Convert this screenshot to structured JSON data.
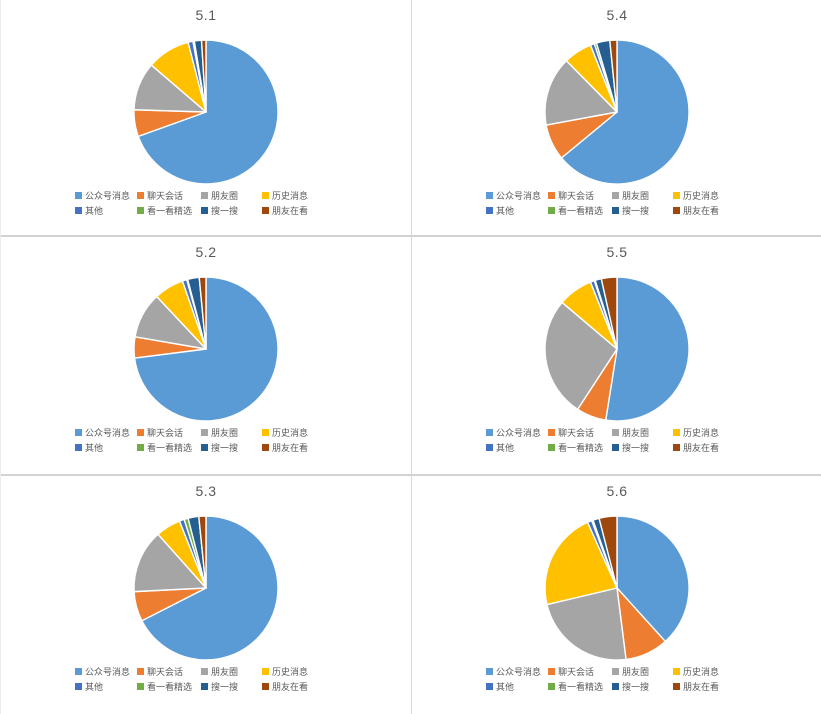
{
  "page": {
    "background": "#ffffff",
    "divider_color": "#d9d9d9"
  },
  "legend": {
    "labels": [
      "公众号消息",
      "聊天会话",
      "朋友圈",
      "历史消息",
      "其他",
      "看一看精选",
      "搜一搜",
      "朋友在看"
    ],
    "colors": [
      "#5B9BD5",
      "#ED7D31",
      "#A5A5A5",
      "#FFC000",
      "#4472C4",
      "#70AD47",
      "#255E91",
      "#9E480E"
    ],
    "position": "bottom"
  },
  "chart_data": {
    "type": "pie",
    "note": "six pie charts sharing the same categories and colors; values are percent of whole, drawn clockwise from 12 o'clock",
    "categories": [
      "公众号消息",
      "聊天会话",
      "朋友圈",
      "历史消息",
      "其他",
      "看一看精选",
      "搜一搜",
      "朋友在看"
    ],
    "colors": [
      "#5B9BD5",
      "#ED7D31",
      "#A5A5A5",
      "#FFC000",
      "#4472C4",
      "#70AD47",
      "#255E91",
      "#9E480E"
    ],
    "charts": [
      {
        "title": "5.1",
        "values": [
          69.5,
          6.0,
          10.8,
          9.7,
          1.1,
          0.3,
          1.6,
          1.0
        ]
      },
      {
        "title": "5.4",
        "values": [
          64.0,
          8.1,
          15.5,
          6.4,
          0.9,
          0.5,
          3.0,
          1.6
        ]
      },
      {
        "title": "5.2",
        "values": [
          73.0,
          4.7,
          10.3,
          6.7,
          1.0,
          0.2,
          2.6,
          1.5
        ]
      },
      {
        "title": "5.5",
        "values": [
          52.5,
          6.7,
          27.0,
          7.8,
          0.9,
          0.2,
          1.4,
          3.5
        ]
      },
      {
        "title": "5.3",
        "values": [
          67.5,
          6.7,
          14.2,
          5.6,
          1.1,
          0.9,
          2.4,
          1.6
        ]
      },
      {
        "title": "5.6",
        "values": [
          38.3,
          9.7,
          23.3,
          22.0,
          1.0,
          0.3,
          1.4,
          4.0
        ]
      }
    ]
  }
}
